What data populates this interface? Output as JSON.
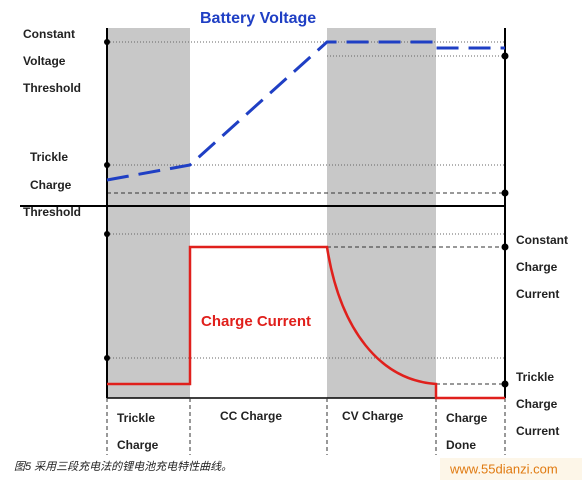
{
  "title": "Battery Voltage",
  "current_label": "Charge Current",
  "left_labels": [
    "Constant",
    "Voltage",
    "Threshold",
    "Trickle",
    "Charge",
    "Threshold"
  ],
  "right_labels": [
    "Constant",
    "Charge",
    "Current",
    "Trickle",
    "Charge",
    "Current"
  ],
  "phases": [
    [
      "Trickle",
      "Charge"
    ],
    [
      "CC Charge"
    ],
    [
      "CV Charge"
    ],
    [
      "Charge",
      "Done"
    ]
  ],
  "caption": "图5 采用三段充电法的锂电池充电特性曲线。",
  "watermark": "www.55dianzi.com"
}
